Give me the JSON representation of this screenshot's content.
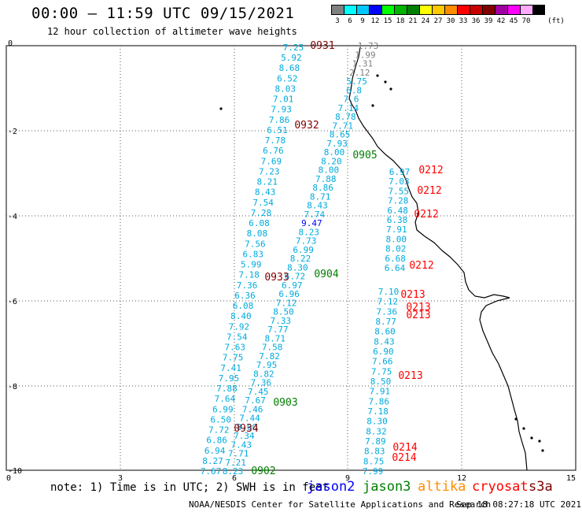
{
  "header": {
    "title": "00:00 – 11:59 UTC 09/15/2021",
    "subtitle": "12 hour collection of altimeter wave heights"
  },
  "legend": {
    "unit": "(ft)",
    "bins": [
      {
        "label": "3",
        "color": "#808080"
      },
      {
        "label": "6",
        "color": "#00ffff"
      },
      {
        "label": "9",
        "color": "#00c8ff"
      },
      {
        "label": "12",
        "color": "#0000ff"
      },
      {
        "label": "15",
        "color": "#00ff00"
      },
      {
        "label": "18",
        "color": "#00b400"
      },
      {
        "label": "21",
        "color": "#008000"
      },
      {
        "label": "24",
        "color": "#ffff00"
      },
      {
        "label": "27",
        "color": "#ffc800"
      },
      {
        "label": "30",
        "color": "#ff8c00"
      },
      {
        "label": "33",
        "color": "#ff0000"
      },
      {
        "label": "36",
        "color": "#c80000"
      },
      {
        "label": "39",
        "color": "#800000"
      },
      {
        "label": "42",
        "color": "#a000a0"
      },
      {
        "label": "45",
        "color": "#ff00ff"
      },
      {
        "label": "70",
        "color": "#ffaaff"
      },
      {
        "label": "",
        "color": "#000000"
      }
    ]
  },
  "axes": {
    "x_ticks": [
      "0",
      "3",
      "6",
      "9",
      "12",
      "15"
    ],
    "y_ticks": [
      "0",
      "-2",
      "-4",
      "-6",
      "-8",
      "-10"
    ]
  },
  "tracks": [
    {
      "pass": "0931",
      "color": "#00aadd",
      "values": [
        "7.25",
        "5.92",
        "8.68",
        "6.52",
        "8.03",
        "7.01",
        "7.93",
        "7.86",
        "6.51",
        "7.78",
        "6.76",
        "7.69",
        "7.23",
        "8.21",
        "8.43",
        "7.54",
        "7.28",
        "6.08",
        "8.08",
        "7.56",
        "6.83",
        "5.99",
        "7.18",
        "7.36",
        "6.36",
        "6.08",
        "8.40",
        "7.92",
        "7.54",
        "7.63",
        "7.75",
        "7.41",
        "7.95",
        "7.88",
        "7.64",
        "6.99",
        "6.50",
        "7.72",
        "6.86",
        "6.94",
        "8.27",
        "7.67"
      ]
    },
    {
      "pass": "0932",
      "color": "#00aadd",
      "values": [
        "1.73",
        "1.99",
        "1.31",
        "2.12",
        "5.75",
        "6.8",
        "7.6",
        "7.14",
        "8.78",
        "7.71",
        "8.65",
        "7.93",
        "8.00",
        "8.20",
        "8.00",
        "7.88",
        "8.86",
        "8.71",
        "8.43",
        "7.74",
        "9.47",
        "8.23",
        "7.73",
        "6.99",
        "8.22",
        "8.30",
        "6.72",
        "6.97",
        "6.96",
        "7.12",
        "8.50",
        "7.33",
        "7.77",
        "8.71",
        "7.58",
        "7.82",
        "7.95",
        "8.82",
        "7.36",
        "7.45",
        "7.67",
        "7.46",
        "7.44",
        "8.00",
        "7.34",
        "7.43",
        "7.71",
        "7.21",
        "8.23"
      ]
    },
    {
      "pass": "0212",
      "color": "#00aadd",
      "values": [
        "6.97",
        "7.03",
        "7.55",
        "7.28",
        "6.48",
        "6.38",
        "7.91",
        "8.00",
        "8.02",
        "6.68",
        "6.64"
      ]
    },
    {
      "pass": "0213",
      "color": "#00aadd",
      "values": [
        "7.10",
        "7.12",
        "7.36",
        "8.77",
        "8.60",
        "8.43",
        "6.90",
        "7.66",
        "7.75",
        "8.50",
        "7.91",
        "7.86",
        "7.18",
        "8.30",
        "8.32",
        "7.89",
        "8.83",
        "8.75",
        "7.99"
      ]
    }
  ],
  "pass_labels": [
    {
      "text": "0931",
      "color": "#800000"
    },
    {
      "text": "0932",
      "color": "#800000"
    },
    {
      "text": "0933",
      "color": "#800000"
    },
    {
      "text": "0934",
      "color": "#800000"
    },
    {
      "text": "0905",
      "color": "#008000"
    },
    {
      "text": "0904",
      "color": "#008000"
    },
    {
      "text": "0903",
      "color": "#008000"
    },
    {
      "text": "0902",
      "color": "#008000"
    },
    {
      "text": "0212",
      "color": "#ff0000"
    },
    {
      "text": "0212",
      "color": "#ff0000"
    },
    {
      "text": "0212",
      "color": "#ff0000"
    },
    {
      "text": "0212",
      "color": "#ff0000"
    },
    {
      "text": "0213",
      "color": "#ff0000"
    },
    {
      "text": "0213",
      "color": "#ff0000"
    },
    {
      "text": "0213",
      "color": "#ff0000"
    },
    {
      "text": "0213",
      "color": "#ff0000"
    },
    {
      "text": "0214",
      "color": "#ff0000"
    },
    {
      "text": "0214",
      "color": "#ff0000"
    }
  ],
  "footer": {
    "note": "note: 1) Time is in UTC; 2) SWH is in feet",
    "satellites": [
      {
        "name": "jason2",
        "color": "#0000ff"
      },
      {
        "name": "jason3",
        "color": "#008000"
      },
      {
        "name": "altika",
        "color": "#ff8c00"
      },
      {
        "name": "cryosat",
        "color": "#ff0000"
      },
      {
        "name": "s3a",
        "color": "#800000"
      }
    ],
    "credit": "NOAA/NESDIS Center for Satellite Applications and Research",
    "timestamp": "Sep 18 08:27:18 UTC 2021"
  }
}
